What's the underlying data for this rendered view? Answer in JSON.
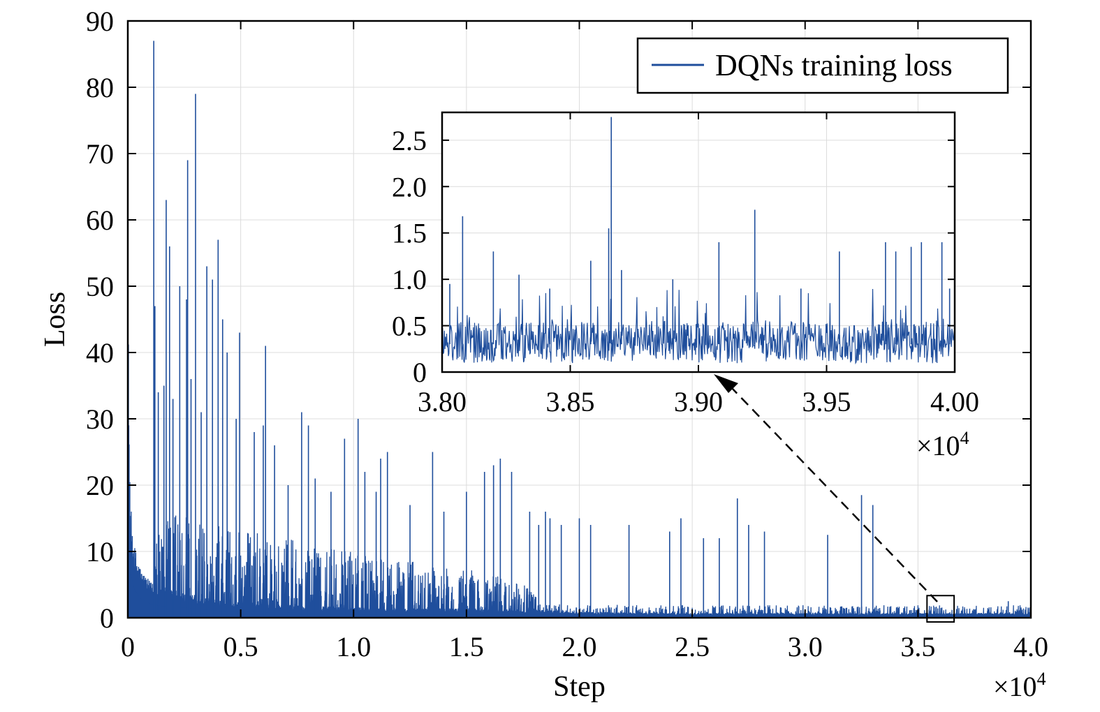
{
  "chart_data": [
    {
      "type": "line",
      "role": "main",
      "xlabel": "Step",
      "ylabel": "Loss",
      "xlim": [
        0,
        40000
      ],
      "ylim": [
        0,
        90
      ],
      "x_ticks": [
        0,
        5000,
        10000,
        15000,
        20000,
        25000,
        30000,
        35000,
        40000
      ],
      "x_tick_labels": [
        "0",
        "0.5",
        "1.0",
        "1.5",
        "2.0",
        "2.5",
        "3.0",
        "3.5",
        "4.0"
      ],
      "x_multiplier": "×10",
      "x_multiplier_exp": "4",
      "y_ticks": [
        0,
        10,
        20,
        30,
        40,
        50,
        60,
        70,
        80,
        90
      ],
      "y_tick_labels": [
        "0",
        "10",
        "20",
        "30",
        "40",
        "50",
        "60",
        "70",
        "80",
        "90"
      ],
      "grid": true,
      "legend_position": "top-right",
      "series": [
        {
          "name": "DQNs training loss",
          "color": "#1f4e9c",
          "baseline_x": [
            0,
            100,
            300,
            600,
            1000,
            1500,
            2500,
            4000,
            6000,
            8000,
            10000,
            14000,
            18000,
            20000,
            25000,
            30000,
            35000,
            40000
          ],
          "baseline_y": [
            30,
            10,
            6,
            4,
            3,
            2.5,
            2.2,
            1.5,
            1.2,
            1.0,
            0.9,
            0.8,
            0.7,
            0.5,
            0.4,
            0.4,
            0.4,
            0.4
          ],
          "spikes": [
            [
              1150,
              87
            ],
            [
              1200,
              47
            ],
            [
              1700,
              63
            ],
            [
              1850,
              56
            ],
            [
              2300,
              50
            ],
            [
              2600,
              48
            ],
            [
              2650,
              69
            ],
            [
              3000,
              79
            ],
            [
              3500,
              53
            ],
            [
              3750,
              51
            ],
            [
              4000,
              57
            ],
            [
              4200,
              45
            ],
            [
              1600,
              35
            ],
            [
              1350,
              34
            ],
            [
              2000,
              33
            ],
            [
              2800,
              36
            ],
            [
              3250,
              31
            ],
            [
              4400,
              40
            ],
            [
              4800,
              30
            ],
            [
              4950,
              43
            ],
            [
              6100,
              41
            ],
            [
              6000,
              29
            ],
            [
              5600,
              28
            ],
            [
              6500,
              26
            ],
            [
              7100,
              20
            ],
            [
              7700,
              31
            ],
            [
              8000,
              29
            ],
            [
              8300,
              21
            ],
            [
              9000,
              19
            ],
            [
              9600,
              27
            ],
            [
              10200,
              30
            ],
            [
              10500,
              22
            ],
            [
              11000,
              19
            ],
            [
              11200,
              24
            ],
            [
              11500,
              25
            ],
            [
              12500,
              17
            ],
            [
              13500,
              25
            ],
            [
              14000,
              16
            ],
            [
              15000,
              19
            ],
            [
              15800,
              22
            ],
            [
              16200,
              23
            ],
            [
              16500,
              24
            ],
            [
              17000,
              22
            ],
            [
              17800,
              16
            ],
            [
              18200,
              14
            ],
            [
              18500,
              16
            ],
            [
              18700,
              15
            ],
            [
              19200,
              14
            ],
            [
              20000,
              15
            ],
            [
              20500,
              14
            ],
            [
              22200,
              14
            ],
            [
              24000,
              13
            ],
            [
              24500,
              15
            ],
            [
              25500,
              12
            ],
            [
              26200,
              12
            ],
            [
              27000,
              18
            ],
            [
              27500,
              14
            ],
            [
              28200,
              13
            ],
            [
              31000,
              12.5
            ],
            [
              32500,
              18.5
            ],
            [
              33000,
              17
            ],
            [
              39000,
              2.5
            ]
          ],
          "dense_band": [
            [
              1100,
              18100,
              14
            ],
            [
              18100,
              40000,
              1.5
            ]
          ]
        }
      ],
      "zoom_box": {
        "x": [
          35400,
          36600
        ],
        "y": [
          0,
          2.5
        ]
      }
    },
    {
      "type": "line",
      "role": "inset",
      "xlim": [
        38000,
        40000
      ],
      "ylim": [
        0,
        2.8
      ],
      "x_ticks": [
        38000,
        38500,
        39000,
        39500,
        40000
      ],
      "x_tick_labels": [
        "3.80",
        "3.85",
        "3.90",
        "3.95",
        "4.00"
      ],
      "x_multiplier": "×10",
      "x_multiplier_exp": "4",
      "y_ticks": [
        0,
        0.5,
        1.0,
        1.5,
        2.0,
        2.5
      ],
      "y_tick_labels": [
        "0",
        "0.5",
        "1.0",
        "1.5",
        "2.0",
        "2.5"
      ],
      "grid": true,
      "series": [
        {
          "color": "#1f4e9c",
          "mean": 0.32,
          "spikes": [
            [
              38080,
              1.68
            ],
            [
              38030,
              0.95
            ],
            [
              38200,
              1.3
            ],
            [
              38300,
              1.05
            ],
            [
              38420,
              0.9
            ],
            [
              38580,
              1.2
            ],
            [
              38650,
              1.55
            ],
            [
              38660,
              2.75
            ],
            [
              38700,
              1.1
            ],
            [
              38900,
              1.0
            ],
            [
              39080,
              1.4
            ],
            [
              39220,
              1.75
            ],
            [
              39400,
              0.9
            ],
            [
              39550,
              1.3
            ],
            [
              39730,
              1.4
            ],
            [
              39770,
              1.3
            ],
            [
              39830,
              1.35
            ],
            [
              39870,
              1.4
            ],
            [
              39950,
              1.4
            ],
            [
              39980,
              0.9
            ]
          ]
        }
      ]
    }
  ]
}
